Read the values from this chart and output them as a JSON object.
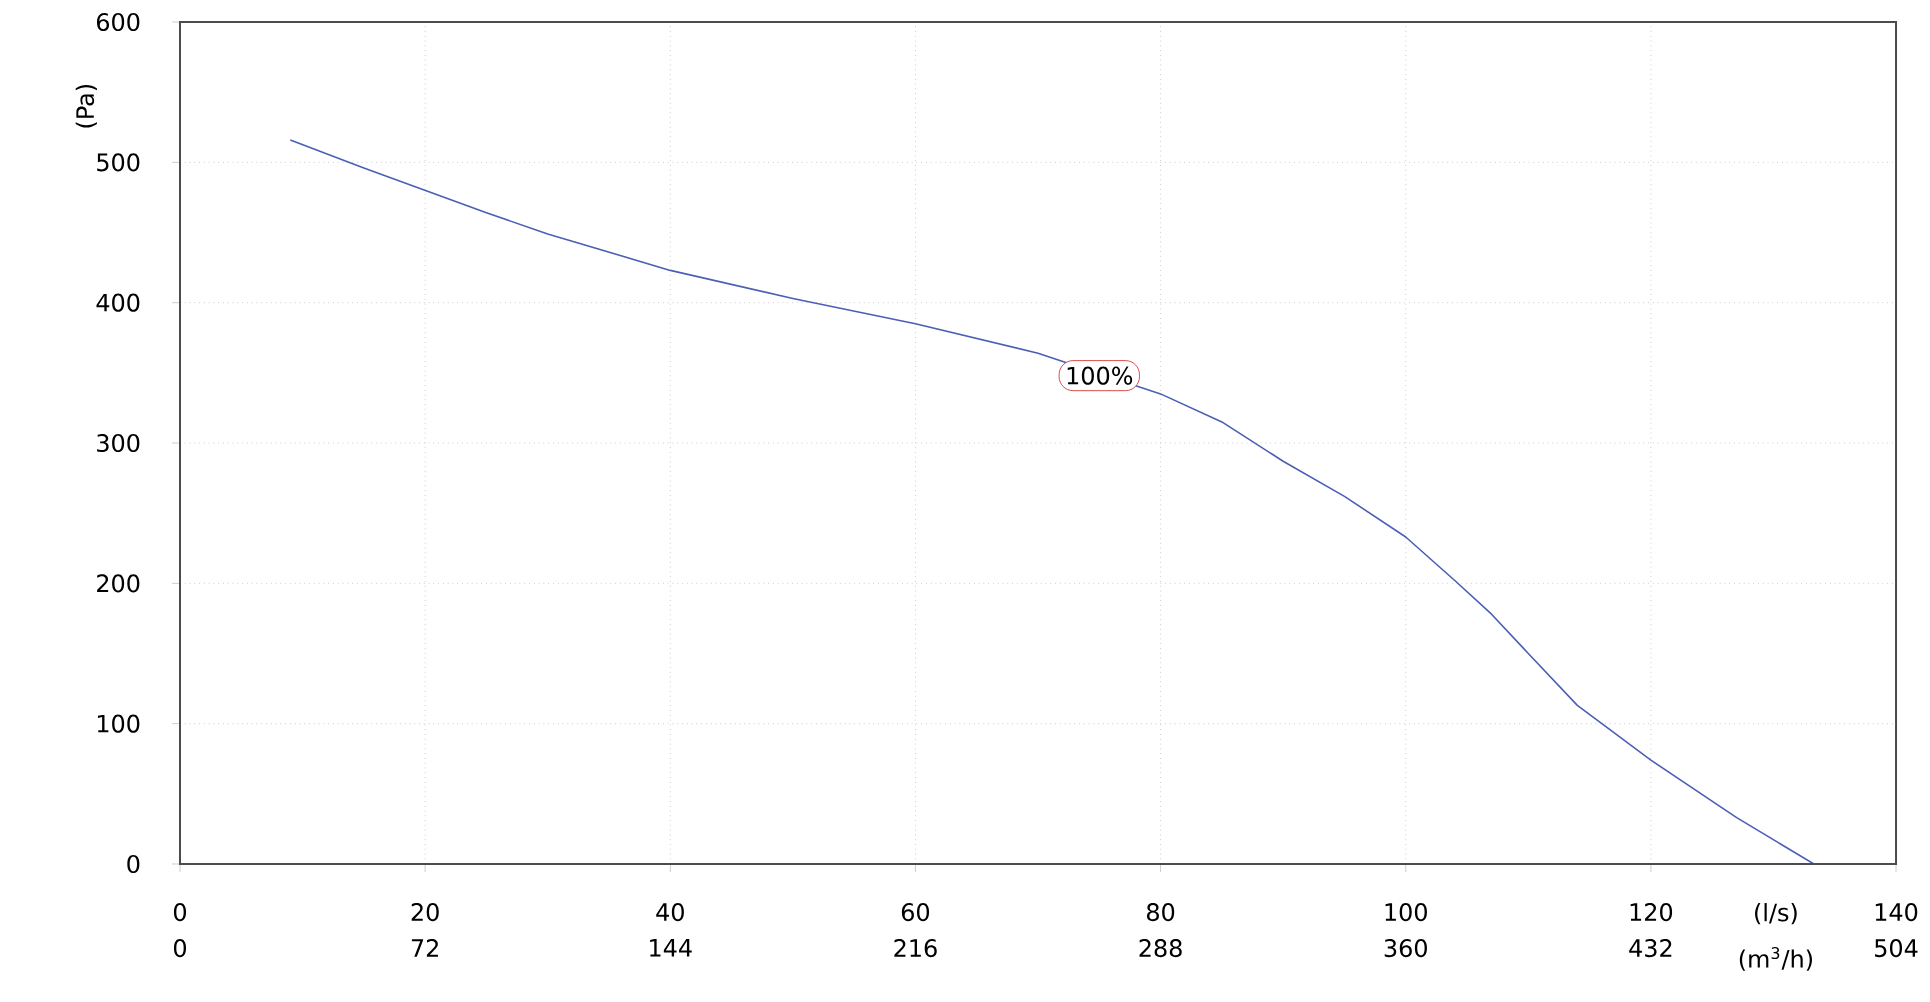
{
  "chart_data": {
    "type": "line",
    "ylabel": "(Pa)",
    "xlabel": "(l/s)",
    "x2label": "(m$^{3}$/h)",
    "x": [
      9,
      15,
      20,
      25,
      30,
      35,
      40,
      50,
      60,
      70,
      75,
      80,
      85,
      90,
      95,
      100,
      104,
      107,
      110,
      114,
      120,
      127,
      133.3
    ],
    "series": [
      {
        "color": "#4a5fb5",
        "values": [
          516,
          496,
          480,
          464,
          449,
          436,
          423,
          403,
          385,
          364,
          null,
          335,
          315,
          287,
          262,
          233,
          202,
          178,
          150,
          113,
          74,
          33,
          0
        ]
      }
    ],
    "xlim": [
      0,
      140
    ],
    "xticks": [
      0,
      20,
      40,
      60,
      80,
      100,
      120,
      140
    ],
    "x2lim": [
      0,
      504
    ],
    "x2ticks": [
      0,
      72,
      144,
      216,
      288,
      360,
      432,
      504
    ],
    "ylim": [
      0,
      600
    ],
    "yticks": [
      0,
      100,
      200,
      300,
      400,
      500,
      600
    ],
    "grid": true,
    "marker": "none",
    "line_style": "solid",
    "annotations": [
      {
        "text": "100%",
        "x": 75,
        "y": 348
      }
    ]
  }
}
